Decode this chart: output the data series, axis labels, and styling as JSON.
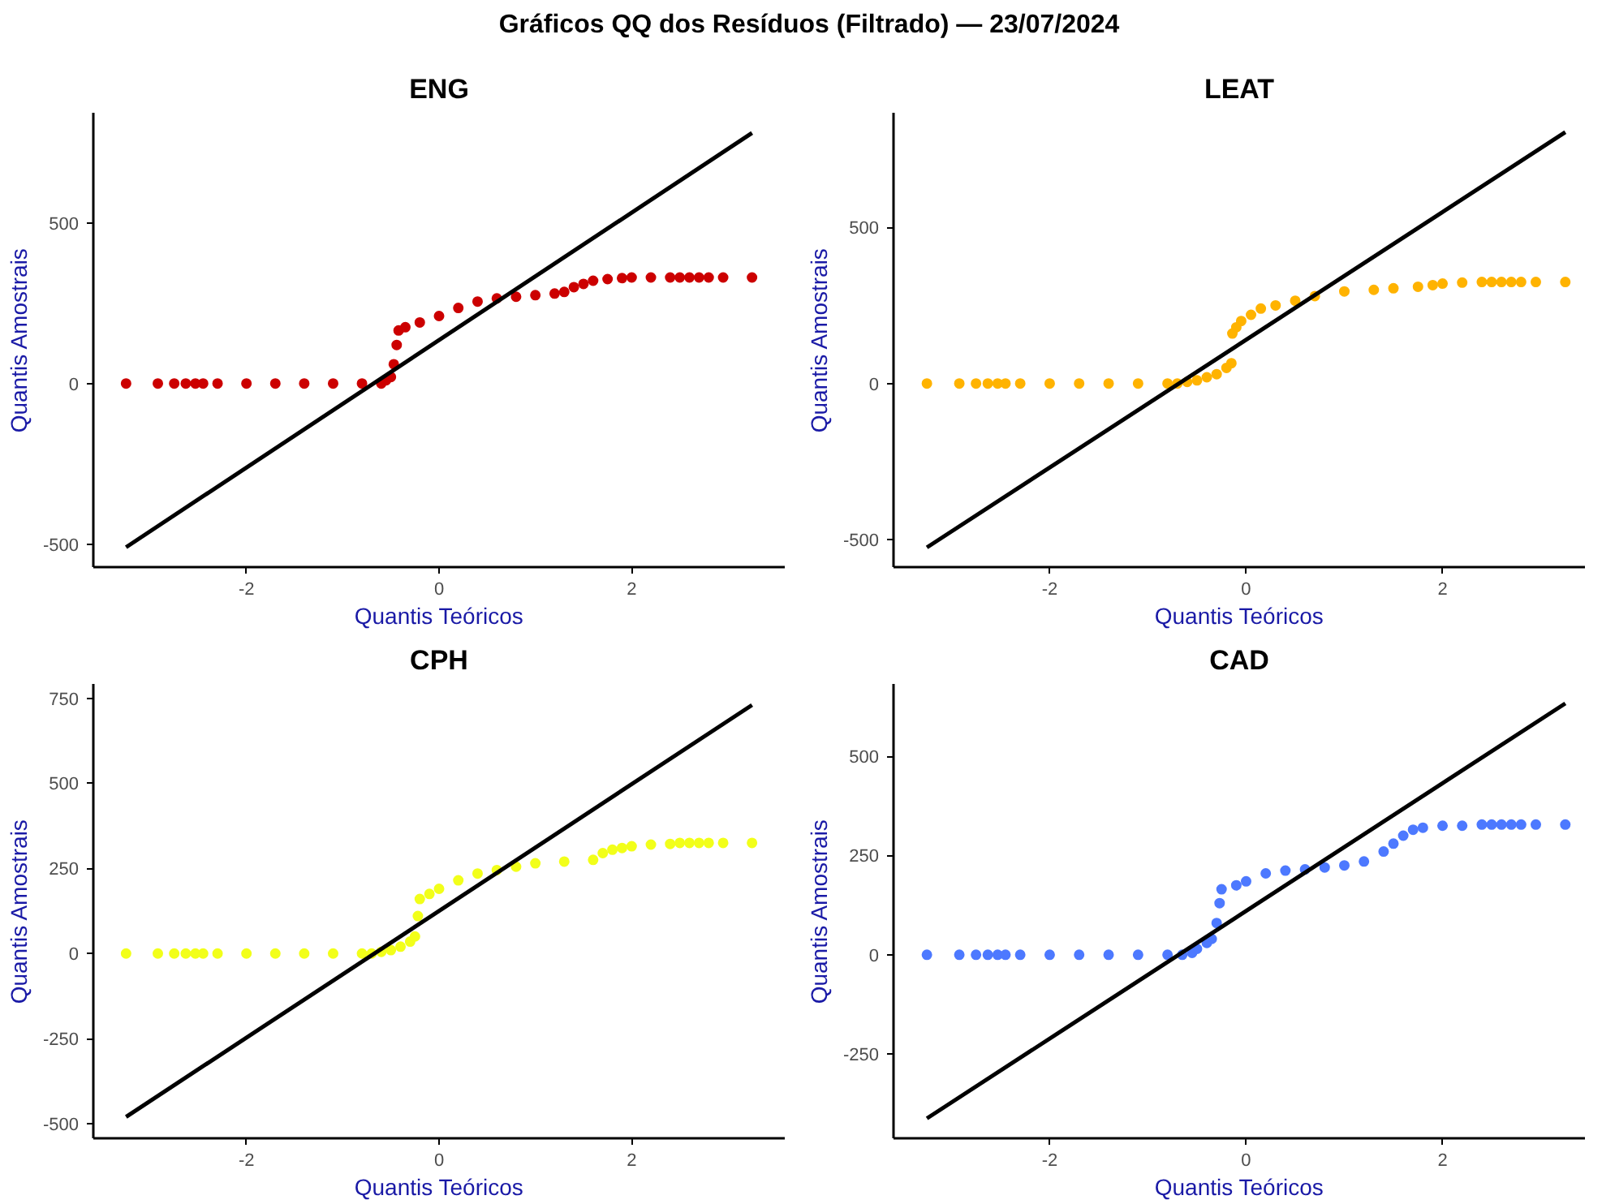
{
  "chart_data": [
    {
      "type": "other",
      "title": "Gráficos QQ dos Resíduos (Filtrado) — 23/07/2024"
    },
    {
      "type": "scatter",
      "title": "ENG",
      "xlabel": "Quantis Teóricos",
      "ylabel": "Quantis Amostrais",
      "xlim": [
        -3.59,
        3.59
      ],
      "ylim": [
        -572,
        843
      ],
      "xticks": [
        -2,
        0,
        2
      ],
      "yticks": [
        -500,
        0,
        500
      ],
      "grid": false,
      "series": [
        {
          "marker": "circle",
          "color": "#cc0000",
          "x": [
            -3.25,
            -2.92,
            -2.75,
            -2.63,
            -2.53,
            -2.45,
            -2.3,
            -2.0,
            -1.7,
            -1.4,
            -1.1,
            -0.8,
            -0.6,
            -0.55,
            -0.5,
            -0.47,
            -0.44,
            -0.42,
            -0.35,
            -0.2,
            0,
            0.2,
            0.4,
            0.6,
            0.8,
            1.0,
            1.2,
            1.3,
            1.4,
            1.5,
            1.6,
            1.75,
            1.9,
            2.0,
            2.2,
            2.4,
            2.5,
            2.6,
            2.7,
            2.8,
            2.95,
            3.25
          ],
          "values": [
            0,
            0,
            0,
            0,
            0,
            0,
            0,
            0,
            0,
            0,
            0,
            0,
            0,
            10,
            20,
            60,
            120,
            165,
            175,
            190,
            210,
            235,
            255,
            265,
            270,
            275,
            280,
            285,
            300,
            310,
            320,
            325,
            328,
            330,
            330,
            330,
            330,
            330,
            330,
            330,
            330,
            330
          ]
        },
        {
          "type": "line",
          "color": "#000000",
          "line_style": "solid",
          "x": [
            -3.25,
            3.25
          ],
          "values": [
            -510,
            780
          ]
        }
      ]
    },
    {
      "type": "scatter",
      "title": "LEAT",
      "xlabel": "Quantis Teóricos",
      "ylabel": "Quantis Amostrais",
      "xlim": [
        -3.59,
        3.45
      ],
      "ylim": [
        -588,
        867
      ],
      "xticks": [
        -2,
        0,
        2
      ],
      "yticks": [
        -500,
        0,
        500
      ],
      "grid": false,
      "series": [
        {
          "marker": "circle",
          "color": "#ffb300",
          "x": [
            -3.25,
            -2.92,
            -2.75,
            -2.63,
            -2.53,
            -2.45,
            -2.3,
            -2.0,
            -1.7,
            -1.4,
            -1.1,
            -0.8,
            -0.7,
            -0.6,
            -0.5,
            -0.4,
            -0.3,
            -0.2,
            -0.15,
            -0.14,
            -0.1,
            -0.05,
            0.05,
            0.15,
            0.3,
            0.5,
            0.7,
            1.0,
            1.3,
            1.5,
            1.75,
            1.9,
            2.0,
            2.2,
            2.4,
            2.5,
            2.6,
            2.7,
            2.8,
            2.95,
            3.25
          ],
          "values": [
            0,
            0,
            0,
            0,
            0,
            0,
            0,
            0,
            0,
            0,
            0,
            0,
            0,
            5,
            10,
            20,
            30,
            50,
            65,
            160,
            180,
            200,
            220,
            240,
            250,
            265,
            280,
            295,
            300,
            305,
            310,
            315,
            320,
            323,
            325,
            325,
            325,
            325,
            325,
            325,
            325
          ]
        },
        {
          "type": "line",
          "color": "#000000",
          "line_style": "solid",
          "x": [
            -3.25,
            3.25
          ],
          "values": [
            -525,
            805
          ]
        }
      ]
    },
    {
      "type": "scatter",
      "title": "CPH",
      "xlabel": "Quantis Teóricos",
      "ylabel": "Quantis Amostrais",
      "xlim": [
        -3.59,
        3.59
      ],
      "ylim": [
        -543,
        792
      ],
      "xticks": [
        -2,
        0,
        2
      ],
      "yticks": [
        -500,
        -250,
        0,
        250,
        500,
        750
      ],
      "grid": false,
      "series": [
        {
          "marker": "circle",
          "color": "#f2ff1a",
          "x": [
            -3.25,
            -2.92,
            -2.75,
            -2.63,
            -2.53,
            -2.45,
            -2.3,
            -2.0,
            -1.7,
            -1.4,
            -1.1,
            -0.8,
            -0.7,
            -0.6,
            -0.5,
            -0.4,
            -0.3,
            -0.25,
            -0.22,
            -0.2,
            -0.1,
            0,
            0.2,
            0.4,
            0.6,
            0.8,
            1.0,
            1.3,
            1.6,
            1.7,
            1.8,
            1.9,
            2.0,
            2.2,
            2.4,
            2.5,
            2.6,
            2.7,
            2.8,
            2.95,
            3.25
          ],
          "values": [
            0,
            0,
            0,
            0,
            0,
            0,
            0,
            0,
            0,
            0,
            0,
            0,
            0,
            5,
            10,
            20,
            35,
            50,
            110,
            160,
            175,
            190,
            215,
            235,
            245,
            255,
            265,
            270,
            275,
            295,
            305,
            310,
            315,
            320,
            322,
            325,
            325,
            325,
            325,
            325,
            325
          ]
        },
        {
          "type": "line",
          "color": "#000000",
          "line_style": "solid",
          "x": [
            -3.25,
            3.25
          ],
          "values": [
            -480,
            730
          ]
        }
      ]
    },
    {
      "type": "scatter",
      "title": "CAD",
      "xlabel": "Quantis Teóricos",
      "ylabel": "Quantis Amostrais",
      "xlim": [
        -3.59,
        3.45
      ],
      "ylim": [
        -462,
        682
      ],
      "xticks": [
        -2,
        0,
        2
      ],
      "yticks": [
        -250,
        0,
        250,
        500
      ],
      "grid": false,
      "series": [
        {
          "marker": "circle",
          "color": "#4d79ff",
          "x": [
            -3.25,
            -2.92,
            -2.75,
            -2.63,
            -2.53,
            -2.45,
            -2.3,
            -2.0,
            -1.7,
            -1.4,
            -1.1,
            -0.8,
            -0.65,
            -0.55,
            -0.5,
            -0.4,
            -0.35,
            -0.3,
            -0.27,
            -0.25,
            -0.1,
            0,
            0.2,
            0.4,
            0.6,
            0.8,
            1.0,
            1.2,
            1.4,
            1.5,
            1.6,
            1.7,
            1.8,
            2.0,
            2.2,
            2.4,
            2.5,
            2.6,
            2.7,
            2.8,
            2.95,
            3.25
          ],
          "values": [
            0,
            0,
            0,
            0,
            0,
            0,
            0,
            0,
            0,
            0,
            0,
            0,
            0,
            5,
            15,
            30,
            40,
            80,
            130,
            165,
            175,
            185,
            205,
            212,
            215,
            220,
            225,
            235,
            260,
            280,
            300,
            315,
            320,
            325,
            325,
            328,
            328,
            328,
            328,
            328,
            328,
            328
          ]
        },
        {
          "type": "line",
          "color": "#000000",
          "line_style": "solid",
          "x": [
            -3.25,
            3.25
          ],
          "values": [
            -412,
            633
          ]
        }
      ]
    }
  ]
}
